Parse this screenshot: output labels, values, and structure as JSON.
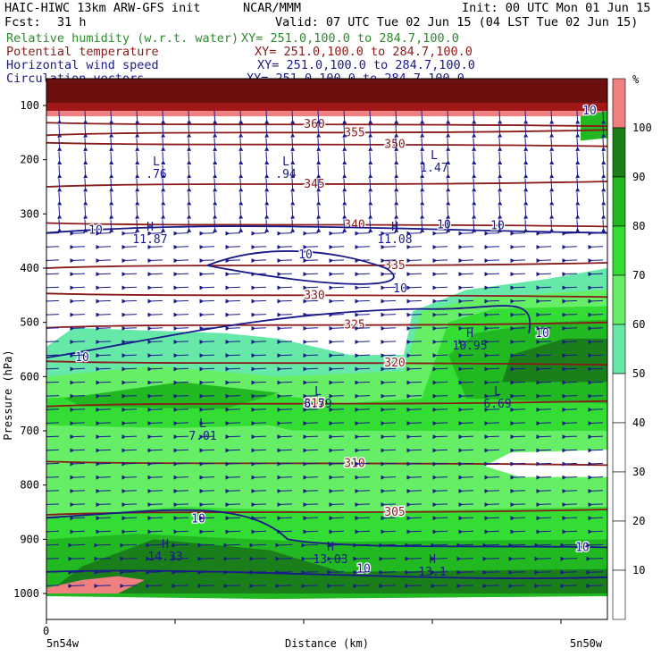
{
  "header": {
    "model_line": "HAIC-HIWC 13km ARW-GFS init",
    "org": "NCAR/MMM",
    "init": "Init: 00 UTC Mon 01 Jun 15",
    "fcst_label": "Fcst:",
    "fcst_value": "31 h",
    "valid": "Valid: 07 UTC Tue 02 Jun 15 (04 LST Tue 02 Jun 15)"
  },
  "fields": [
    {
      "name": "Relative humidity (w.r.t. water)",
      "xy": "XY= 251.0,100.0 to 284.7,100.0",
      "color": "#2e8b2e"
    },
    {
      "name": "Potential temperature",
      "xy": "XY= 251.0,100.0 to 284.7,100.0",
      "color": "#8b1a1a"
    },
    {
      "name": "Horizontal wind speed",
      "xy": "XY= 251.0,100.0 to 284.7,100.0",
      "color": "#1a1a8b"
    },
    {
      "name": "Circulation vectors",
      "xy": "XY= 251.0,100.0 to 284.7,100.0",
      "color": "#1a1a8b"
    }
  ],
  "chart_data": {
    "type": "heatmap",
    "ylabel": "Pressure (hPa)",
    "xlabel": "Distance (km)",
    "x_start_tick": "0",
    "x_left_label": "5n54w",
    "x_right_label": "5n50w",
    "y_ticks": [
      100,
      200,
      300,
      400,
      500,
      600,
      700,
      800,
      900,
      1000
    ],
    "ylim": [
      1070,
      60
    ],
    "colorbar": {
      "unit": "%",
      "levels": [
        10,
        20,
        30,
        40,
        50,
        60,
        70,
        80,
        90,
        100
      ],
      "colors": {
        "below_10": "#ffffff",
        "10_20": "#ffffff",
        "20_30": "#ffffff",
        "30_40": "#ffffff",
        "40_50": "#ffffff",
        "50_60": "#66e8a8",
        "60_70": "#66ee66",
        "70_80": "#33dd33",
        "80_90": "#22b822",
        "90_100": "#1a7f1a",
        "above_100": "#f08080"
      }
    },
    "theta_contours": [
      {
        "label": "360",
        "p": 135
      },
      {
        "label": "355",
        "p": 150
      },
      {
        "label": "350",
        "p": 172
      },
      {
        "label": "345",
        "p": 245
      },
      {
        "label": "340",
        "p": 320
      },
      {
        "label": "335",
        "p": 395
      },
      {
        "label": "330",
        "p": 450
      },
      {
        "label": "325",
        "p": 505
      },
      {
        "label": "320",
        "p": 575
      },
      {
        "label": "315",
        "p": 650
      },
      {
        "label": "310",
        "p": 760
      },
      {
        "label": "305",
        "p": 850
      }
    ],
    "wind_labels": [
      {
        "text": "10",
        "kind": "contour"
      },
      {
        "text": "10",
        "kind": "contour"
      },
      {
        "text": "10",
        "kind": "contour"
      },
      {
        "text": "10",
        "kind": "contour"
      },
      {
        "text": "10",
        "kind": "contour"
      },
      {
        "text": "10",
        "kind": "contour"
      },
      {
        "text": "10",
        "kind": "contour"
      },
      {
        "text": "10",
        "kind": "contour"
      },
      {
        "text": "10",
        "kind": "contour"
      },
      {
        "text": "10",
        "kind": "contour"
      },
      {
        "text": "10",
        "kind": "contour"
      }
    ],
    "extrema": [
      {
        "type": "L",
        "value": ".76"
      },
      {
        "type": "L",
        "value": ".94"
      },
      {
        "type": "L",
        "value": "1.47"
      },
      {
        "type": "H",
        "value": "11.87"
      },
      {
        "type": "H",
        "value": "11.08"
      },
      {
        "type": "H",
        "value": "10.95"
      },
      {
        "type": "L",
        "value": "6.79"
      },
      {
        "type": "L",
        "value": "6.69"
      },
      {
        "type": "L",
        "value": "7.01"
      },
      {
        "type": "H",
        "value": "14.33"
      },
      {
        "type": "H",
        "value": "13.03"
      },
      {
        "type": "H",
        "value": "13.1"
      }
    ]
  }
}
